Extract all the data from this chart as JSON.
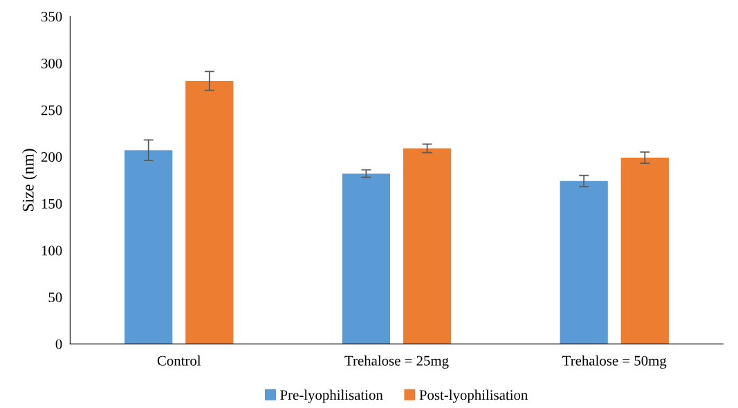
{
  "chart_data": {
    "type": "bar",
    "ylabel": "Size (nm)",
    "categories": [
      "Control",
      "Trehalose = 25mg",
      "Trehalose = 50mg"
    ],
    "series": [
      {
        "name": "Pre-lyophilisation",
        "color": "#5b9bd5",
        "values": [
          207,
          182,
          174
        ],
        "errors": [
          11,
          4,
          6
        ]
      },
      {
        "name": "Post-lyophilisation",
        "color": "#ed7d31",
        "values": [
          281,
          209,
          199
        ],
        "errors": [
          10,
          4.5,
          6
        ]
      }
    ],
    "ylim": [
      0,
      350
    ],
    "yticks": [
      0,
      50,
      100,
      150,
      200,
      250,
      300,
      350
    ],
    "grid": false,
    "legend": "bottom"
  }
}
